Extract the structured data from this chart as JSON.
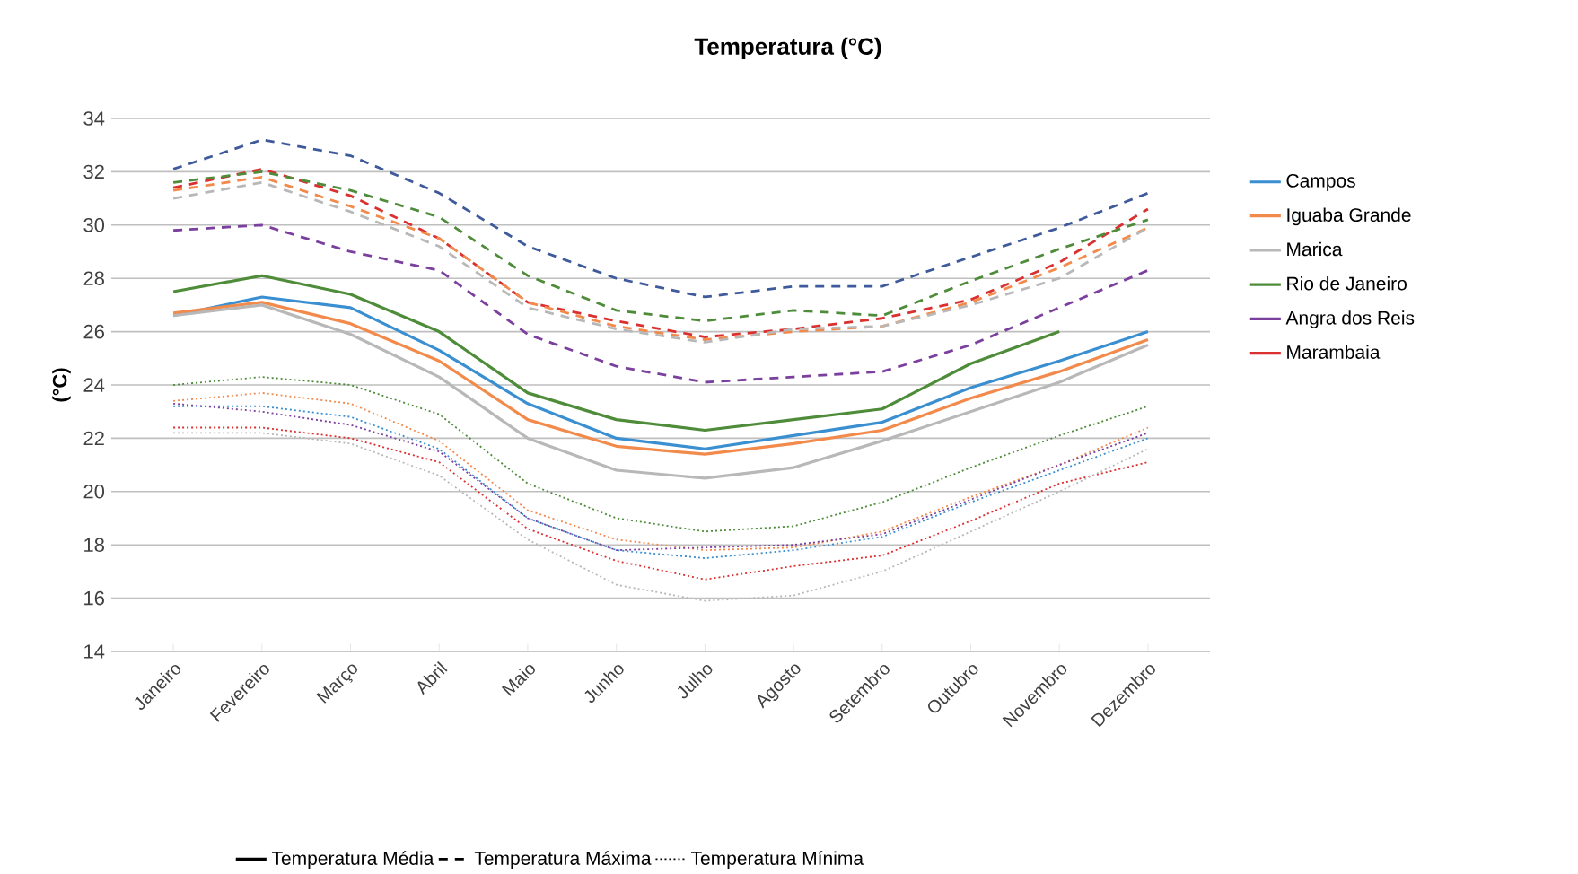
{
  "chart_data": {
    "type": "line",
    "title": "Temperatura (°C)",
    "ylabel": "(°C)",
    "categories": [
      "Janeiro",
      "Fevereiro",
      "Março",
      "Abril",
      "Maio",
      "Junho",
      "Julho",
      "Agosto",
      "Setembro",
      "Outubro",
      "Novembro",
      "Dezembro"
    ],
    "ylim": [
      14,
      34
    ],
    "yticks": [
      14,
      16,
      18,
      20,
      22,
      24,
      26,
      28,
      30,
      32,
      34
    ],
    "grid": "y",
    "legend": "right",
    "marker": "none",
    "series": [
      {
        "name": "Campos",
        "color": "#3a8fd0",
        "line_style": "solid",
        "values": [
          26.6,
          27.3,
          26.9,
          25.3,
          23.3,
          22.0,
          21.6,
          22.1,
          22.6,
          23.9,
          24.9,
          26.0
        ]
      },
      {
        "name": "Iguaba Grande",
        "color": "#f28a4c",
        "line_style": "solid",
        "values": [
          26.7,
          27.1,
          26.3,
          24.9,
          22.7,
          21.7,
          21.4,
          21.8,
          22.3,
          23.5,
          24.5,
          25.7
        ]
      },
      {
        "name": "Marica",
        "color": "#b8b8b8",
        "line_style": "solid",
        "values": [
          26.6,
          27.0,
          25.9,
          24.3,
          22.0,
          20.8,
          20.5,
          20.9,
          21.9,
          23.0,
          24.1,
          25.5
        ]
      },
      {
        "name": "Rio de Janeiro",
        "color": "#4e8c3a",
        "line_style": "solid",
        "values": [
          27.5,
          28.1,
          27.4,
          26.0,
          23.7,
          22.7,
          22.3,
          22.7,
          23.1,
          24.8,
          26.0,
          null
        ]
      },
      {
        "name": "Angra dos Reis",
        "color": "#7b3f9e",
        "line_style": "dashed",
        "values": [
          29.8,
          30.0,
          29.0,
          28.3,
          25.9,
          24.7,
          24.1,
          24.3,
          24.5,
          25.5,
          26.9,
          28.3
        ]
      },
      {
        "name": "Marambaia",
        "color": "#d93030",
        "line_style": "dashed",
        "values": [
          31.4,
          32.1,
          31.1,
          29.5,
          27.1,
          26.4,
          25.8,
          26.1,
          26.5,
          27.2,
          28.6,
          30.6
        ]
      },
      {
        "color": "#3f5a9a",
        "line_style": "dashed",
        "values": [
          32.1,
          33.2,
          32.6,
          31.2,
          29.2,
          28.0,
          27.3,
          27.7,
          27.7,
          28.8,
          29.9,
          31.2
        ]
      },
      {
        "color": "#4e8c3a",
        "line_style": "dashed",
        "values": [
          31.6,
          32.0,
          31.3,
          30.3,
          28.1,
          26.8,
          26.4,
          26.8,
          26.6,
          27.9,
          29.1,
          30.2
        ]
      },
      {
        "color": "#f28a4c",
        "line_style": "dashed",
        "values": [
          31.3,
          31.8,
          30.7,
          29.5,
          27.1,
          26.2,
          25.7,
          26.0,
          26.2,
          27.1,
          28.4,
          29.9
        ]
      },
      {
        "color": "#b8b8b8",
        "line_style": "dashed",
        "values": [
          31.0,
          31.6,
          30.5,
          29.2,
          26.9,
          26.1,
          25.6,
          26.1,
          26.2,
          27.0,
          28.0,
          29.9
        ]
      },
      {
        "color": "#4e8c3a",
        "line_style": "dotted",
        "values": [
          24.0,
          24.3,
          24.0,
          22.9,
          20.3,
          19.0,
          18.5,
          18.7,
          19.6,
          20.9,
          22.1,
          23.2
        ]
      },
      {
        "color": "#f28a4c",
        "line_style": "dotted",
        "values": [
          23.4,
          23.7,
          23.3,
          21.9,
          19.3,
          18.2,
          17.8,
          17.9,
          18.5,
          19.8,
          21.0,
          22.4
        ]
      },
      {
        "color": "#3a8fd0",
        "line_style": "dotted",
        "values": [
          23.2,
          23.2,
          22.8,
          21.6,
          19.0,
          17.8,
          17.5,
          17.8,
          18.3,
          19.6,
          20.8,
          22.0
        ]
      },
      {
        "color": "#7b3f9e",
        "line_style": "dotted",
        "values": [
          23.3,
          23.0,
          22.5,
          21.5,
          19.0,
          17.8,
          17.9,
          18.0,
          18.4,
          19.7,
          21.0,
          22.2
        ]
      },
      {
        "color": "#d93030",
        "line_style": "dotted",
        "values": [
          22.4,
          22.4,
          22.0,
          21.1,
          18.6,
          17.4,
          16.7,
          17.2,
          17.6,
          18.9,
          20.3,
          21.1
        ]
      },
      {
        "color": "#b8b8b8",
        "line_style": "dotted",
        "values": [
          22.2,
          22.2,
          21.8,
          20.6,
          18.2,
          16.5,
          15.9,
          16.1,
          17.0,
          18.5,
          20.0,
          21.6
        ]
      },
      {
        "name": "Temperatura Média",
        "color": "#000000",
        "line_style": "solid",
        "values": [
          null,
          null,
          null,
          null,
          null,
          null,
          null,
          null,
          null,
          null,
          null,
          null
        ]
      },
      {
        "name": "Temperatura Máxima",
        "color": "#000000",
        "line_style": "dashed",
        "values": [
          null,
          null,
          null,
          null,
          null,
          null,
          null,
          null,
          null,
          null,
          null,
          null
        ]
      },
      {
        "name": "Temperatura Mínima",
        "color": "#000000",
        "line_style": "dotted",
        "values": [
          null,
          null,
          null,
          null,
          null,
          null,
          null,
          null,
          null,
          null,
          null,
          null
        ]
      }
    ]
  }
}
